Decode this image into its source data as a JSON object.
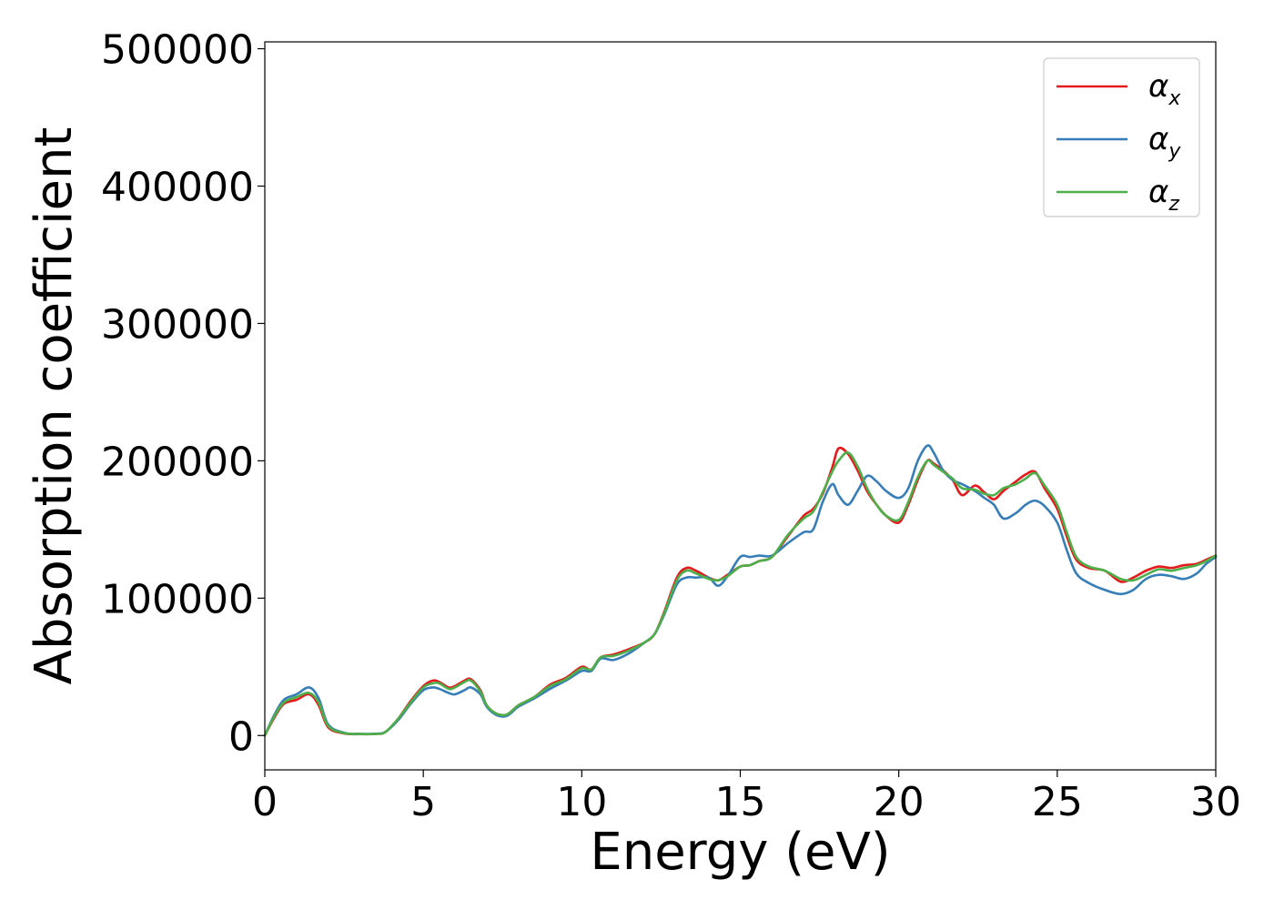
{
  "chart_data": {
    "type": "line",
    "title": "",
    "xlabel": "Energy (eV)",
    "ylabel": "Absorption coefficient",
    "xlim": [
      0,
      30
    ],
    "ylim": [
      -25000,
      505000
    ],
    "xticks": [
      0,
      5,
      10,
      15,
      20,
      25,
      30
    ],
    "yticks": [
      0,
      100000,
      200000,
      300000,
      400000,
      500000
    ],
    "xtick_labels": [
      "0",
      "5",
      "10",
      "15",
      "20",
      "25",
      "30"
    ],
    "ytick_labels": [
      "0",
      "100000",
      "200000",
      "300000",
      "400000",
      "500000"
    ],
    "grid": false,
    "legend_position": "top-right",
    "series": [
      {
        "name": "α",
        "subscript": "x",
        "color": "#e41a1c",
        "x": [
          0,
          0.3,
          0.6,
          1.0,
          1.4,
          1.7,
          2.0,
          2.5,
          3.0,
          3.5,
          3.8,
          4.2,
          4.6,
          5.0,
          5.3,
          5.5,
          5.8,
          6.0,
          6.3,
          6.5,
          6.8,
          7.0,
          7.3,
          7.6,
          7.8,
          8.0,
          8.5,
          9.0,
          9.5,
          10.0,
          10.3,
          10.6,
          11.0,
          11.5,
          12.0,
          12.3,
          12.6,
          13.0,
          13.3,
          13.6,
          14.0,
          14.3,
          14.6,
          15.0,
          15.3,
          15.6,
          16.0,
          16.5,
          17.0,
          17.3,
          17.6,
          17.9,
          18.1,
          18.4,
          18.7,
          19.0,
          19.3,
          19.6,
          20.0,
          20.3,
          20.6,
          20.9,
          21.1,
          21.4,
          21.7,
          22.0,
          22.4,
          22.7,
          23.0,
          23.3,
          23.7,
          24.0,
          24.3,
          24.6,
          25.0,
          25.3,
          25.6,
          26.0,
          26.5,
          27.0,
          27.4,
          27.8,
          28.2,
          28.6,
          29.0,
          29.4,
          29.7,
          30.0
        ],
        "y": [
          0,
          13000,
          23000,
          26000,
          30000,
          22000,
          6000,
          1500,
          1000,
          1200,
          2500,
          12000,
          25000,
          36000,
          40000,
          39000,
          35000,
          36000,
          40000,
          41000,
          33000,
          22000,
          16000,
          15000,
          18000,
          22000,
          28000,
          37000,
          42000,
          50000,
          48000,
          57000,
          59000,
          63000,
          68000,
          74000,
          90000,
          115000,
          122000,
          120000,
          115000,
          113000,
          117000,
          123000,
          124000,
          127000,
          130000,
          145000,
          160000,
          165000,
          176000,
          195000,
          209000,
          205000,
          193000,
          178000,
          168000,
          160000,
          155000,
          168000,
          186000,
          200000,
          198000,
          193000,
          186000,
          175000,
          182000,
          177000,
          172000,
          178000,
          185000,
          190000,
          192000,
          180000,
          165000,
          145000,
          128000,
          122000,
          120000,
          112000,
          115000,
          120000,
          123000,
          122000,
          124000,
          125000,
          128000,
          131000
        ]
      },
      {
        "name": "α",
        "subscript": "y",
        "color": "#377eb8",
        "x": [
          0,
          0.3,
          0.6,
          1.0,
          1.4,
          1.7,
          2.0,
          2.5,
          3.0,
          3.5,
          3.8,
          4.2,
          4.6,
          5.0,
          5.3,
          5.5,
          5.8,
          6.0,
          6.3,
          6.5,
          6.8,
          7.0,
          7.3,
          7.6,
          7.8,
          8.0,
          8.5,
          9.0,
          9.5,
          10.0,
          10.3,
          10.6,
          11.0,
          11.5,
          12.0,
          12.3,
          12.6,
          13.0,
          13.3,
          13.6,
          14.0,
          14.3,
          14.6,
          15.0,
          15.3,
          15.6,
          16.0,
          16.5,
          17.0,
          17.3,
          17.6,
          17.9,
          18.1,
          18.4,
          18.7,
          19.0,
          19.3,
          19.6,
          20.0,
          20.3,
          20.6,
          20.9,
          21.1,
          21.4,
          21.7,
          22.0,
          22.4,
          22.7,
          23.0,
          23.3,
          23.7,
          24.0,
          24.3,
          24.6,
          25.0,
          25.3,
          25.6,
          26.0,
          26.5,
          27.0,
          27.4,
          27.8,
          28.2,
          28.6,
          29.0,
          29.4,
          29.7,
          30.0
        ],
        "y": [
          0,
          15000,
          26000,
          30000,
          35000,
          27000,
          8000,
          2000,
          1200,
          1300,
          2600,
          11000,
          23000,
          33000,
          35000,
          34000,
          31000,
          30000,
          33000,
          35000,
          30000,
          21000,
          15000,
          14000,
          17000,
          21000,
          27000,
          34000,
          40000,
          47000,
          47000,
          56000,
          55000,
          60000,
          68000,
          74000,
          88000,
          110000,
          115000,
          115000,
          115000,
          109000,
          116000,
          130000,
          130000,
          131000,
          131000,
          140000,
          148000,
          150000,
          170000,
          183000,
          175000,
          168000,
          178000,
          189000,
          185000,
          178000,
          173000,
          180000,
          200000,
          211000,
          206000,
          193000,
          186000,
          183000,
          178000,
          173000,
          168000,
          158000,
          162000,
          168000,
          171000,
          167000,
          155000,
          135000,
          118000,
          111000,
          106000,
          103000,
          106000,
          114000,
          117000,
          116000,
          114000,
          118000,
          125000,
          130000
        ]
      },
      {
        "name": "α",
        "subscript": "z",
        "color": "#4daf4a",
        "x": [
          0,
          0.3,
          0.6,
          1.0,
          1.4,
          1.7,
          2.0,
          2.5,
          3.0,
          3.5,
          3.8,
          4.2,
          4.6,
          5.0,
          5.3,
          5.5,
          5.8,
          6.0,
          6.3,
          6.5,
          6.8,
          7.0,
          7.3,
          7.6,
          7.8,
          8.0,
          8.5,
          9.0,
          9.5,
          10.0,
          10.3,
          10.6,
          11.0,
          11.5,
          12.0,
          12.3,
          12.6,
          13.0,
          13.3,
          13.6,
          14.0,
          14.3,
          14.6,
          15.0,
          15.3,
          15.6,
          16.0,
          16.5,
          17.0,
          17.3,
          17.6,
          17.9,
          18.1,
          18.4,
          18.7,
          19.0,
          19.3,
          19.6,
          20.0,
          20.3,
          20.6,
          20.9,
          21.1,
          21.4,
          21.7,
          22.0,
          22.4,
          22.7,
          23.0,
          23.3,
          23.7,
          24.0,
          24.3,
          24.6,
          25.0,
          25.3,
          25.6,
          26.0,
          26.5,
          27.0,
          27.4,
          27.8,
          28.2,
          28.6,
          29.0,
          29.4,
          29.7,
          30.0
        ],
        "y": [
          0,
          14000,
          24000,
          28000,
          31000,
          24000,
          7000,
          1700,
          1100,
          1200,
          2500,
          12000,
          24000,
          35000,
          38000,
          38000,
          34000,
          35000,
          39000,
          40000,
          32000,
          22000,
          16000,
          15000,
          18000,
          22000,
          28000,
          36000,
          41000,
          49000,
          48000,
          57000,
          58000,
          62000,
          68000,
          74000,
          89000,
          113000,
          120000,
          118000,
          114000,
          113000,
          116000,
          123000,
          124000,
          127000,
          130000,
          146000,
          158000,
          163000,
          177000,
          192000,
          200000,
          206000,
          196000,
          180000,
          168000,
          160000,
          157000,
          170000,
          188000,
          200000,
          197000,
          192000,
          187000,
          180000,
          179000,
          176000,
          175000,
          180000,
          183000,
          187000,
          191000,
          182000,
          168000,
          148000,
          130000,
          123000,
          120000,
          114000,
          113000,
          117000,
          121000,
          120000,
          122000,
          124000,
          127000,
          131000
        ]
      }
    ]
  }
}
